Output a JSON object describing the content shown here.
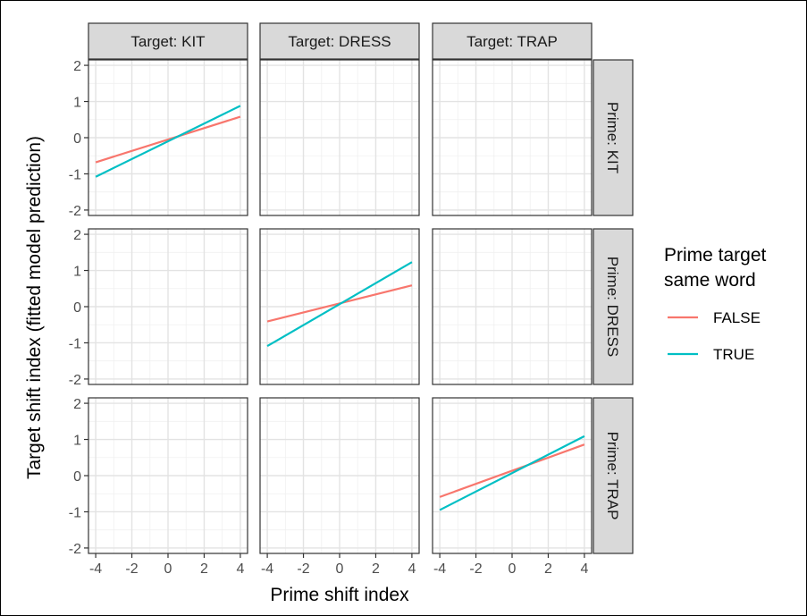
{
  "chart_data": {
    "type": "line",
    "xlabel": "Prime shift index",
    "ylabel": "Target shift index (fitted model prediction)",
    "xlim": [
      -4.4,
      4.4
    ],
    "ylim": [
      -2.15,
      2.15
    ],
    "x_ticks": [
      "-4",
      "-2",
      "0",
      "2",
      "4"
    ],
    "y_ticks": [
      "-2",
      "-1",
      "0",
      "1",
      "2"
    ],
    "grid": true,
    "col_facets": [
      "Target: KIT",
      "Target: DRESS",
      "Target: TRAP"
    ],
    "row_facets": [
      "Prime: KIT",
      "Prime: DRESS",
      "Prime: TRAP"
    ],
    "legend": {
      "title_line1": "Prime target",
      "title_line2": "same word",
      "position": "right",
      "entries": [
        {
          "label": "FALSE",
          "color": "#F8766D"
        },
        {
          "label": "TRUE",
          "color": "#00BFC4"
        }
      ]
    },
    "panels": [
      {
        "row": 0,
        "col": 0,
        "series": [
          {
            "name": "FALSE",
            "x": [
              -4,
              4
            ],
            "y": [
              -0.68,
              0.58
            ]
          },
          {
            "name": "TRUE",
            "x": [
              -4,
              4
            ],
            "y": [
              -1.08,
              0.88
            ]
          }
        ]
      },
      {
        "row": 1,
        "col": 1,
        "series": [
          {
            "name": "FALSE",
            "x": [
              -4,
              4
            ],
            "y": [
              -0.41,
              0.59
            ]
          },
          {
            "name": "TRUE",
            "x": [
              -4,
              4
            ],
            "y": [
              -1.09,
              1.23
            ]
          }
        ]
      },
      {
        "row": 2,
        "col": 2,
        "series": [
          {
            "name": "FALSE",
            "x": [
              -4,
              4
            ],
            "y": [
              -0.59,
              0.86
            ]
          },
          {
            "name": "TRUE",
            "x": [
              -4,
              4
            ],
            "y": [
              -0.95,
              1.09
            ]
          }
        ]
      }
    ]
  }
}
